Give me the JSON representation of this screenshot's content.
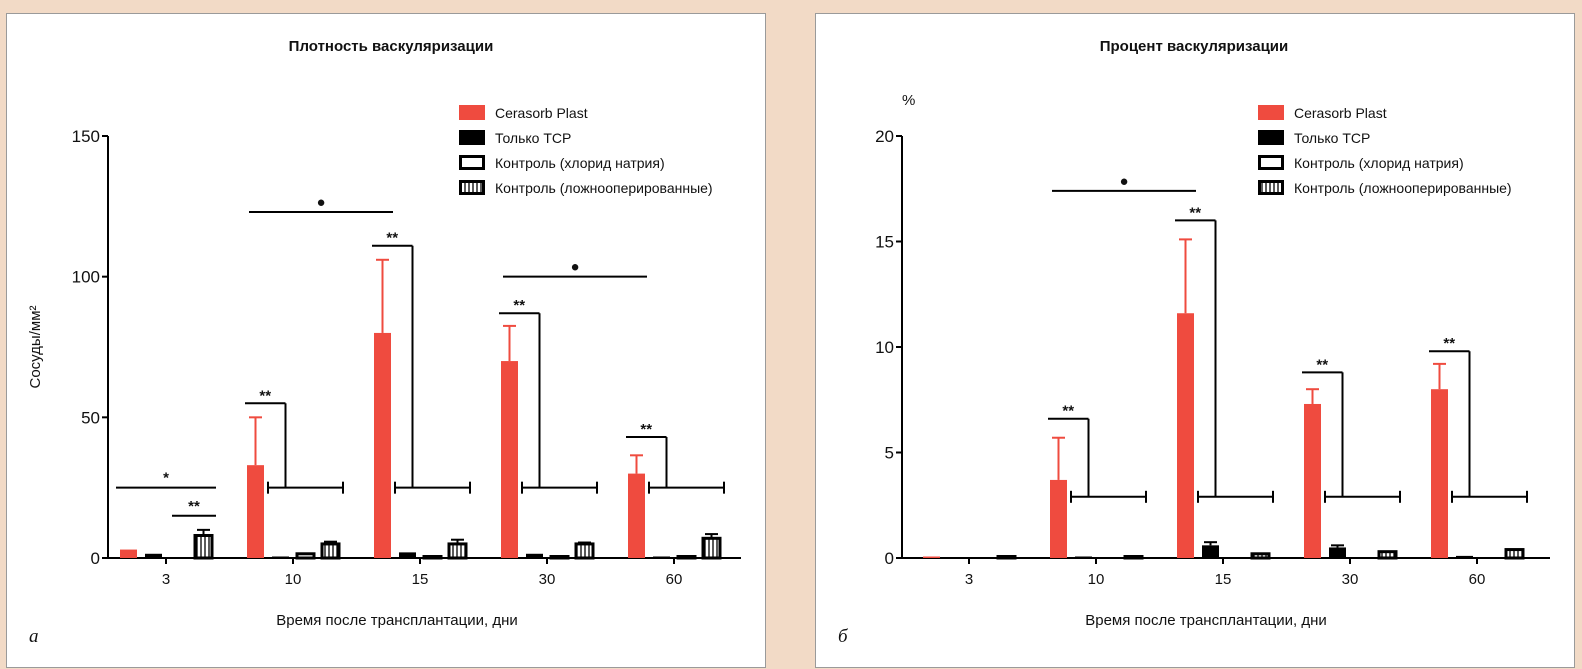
{
  "colors": {
    "cerasorb": "#ef4b3f",
    "tcp": "#000000",
    "outline": "#000000"
  },
  "chart_data": [
    {
      "type": "bar",
      "panel": "а",
      "title": "Плотность васкуляризации",
      "unit_label": "",
      "ylabel": "Сосуды/мм²",
      "xlabel": "Время после трансплантации, дни",
      "categories": [
        "3",
        "10",
        "15",
        "30",
        "60"
      ],
      "ylim": [
        0,
        150
      ],
      "yticks": [
        "0",
        "50",
        "100",
        "150"
      ],
      "legend_position": "top-right",
      "series": [
        {
          "name": "Cerasorb Plast",
          "style": "solid-red",
          "values": [
            3,
            33,
            80,
            70,
            30
          ],
          "errors": [
            0,
            17,
            26,
            12.5,
            6.5
          ]
        },
        {
          "name": "Только ТСР",
          "style": "solid-black",
          "values": [
            1.5,
            0.5,
            2,
            1.5,
            0.5
          ],
          "errors": [
            0,
            0,
            0,
            0,
            0
          ]
        },
        {
          "name": "Контроль (хлорид натрия)",
          "style": "outline",
          "values": [
            0,
            1.5,
            0.5,
            0.5,
            0.5
          ],
          "errors": [
            0,
            0,
            0,
            0,
            0
          ]
        },
        {
          "name": "Контроль (ложнооперированные)",
          "style": "hatched",
          "values": [
            8,
            5,
            5,
            5,
            7
          ],
          "errors": [
            2,
            0.8,
            1.5,
            0.5,
            1.5
          ]
        }
      ],
      "significance": [
        {
          "label": "*",
          "kind": "line",
          "from": [
            0,
            0
          ],
          "to": [
            0,
            3
          ],
          "y": 25
        },
        {
          "label": "**",
          "kind": "line",
          "from": [
            0,
            2
          ],
          "to": [
            0,
            3
          ],
          "y": 15
        },
        {
          "label": "●",
          "kind": "line",
          "from": [
            1,
            0
          ],
          "to": [
            2,
            0
          ],
          "y": 123
        },
        {
          "label": "●",
          "kind": "line",
          "from": [
            3,
            0
          ],
          "to": [
            4,
            0
          ],
          "y": 100
        },
        {
          "label": "**",
          "kind": "bracket",
          "group": 1,
          "top": 55,
          "base": 25
        },
        {
          "label": "**",
          "kind": "bracket",
          "group": 2,
          "top": 111,
          "base": 25
        },
        {
          "label": "**",
          "kind": "bracket",
          "group": 3,
          "top": 87,
          "base": 25
        },
        {
          "label": "**",
          "kind": "bracket",
          "group": 4,
          "top": 43,
          "base": 25
        }
      ]
    },
    {
      "type": "bar",
      "panel": "б",
      "title": "Процент васкуляризации",
      "unit_label": "%",
      "ylabel": "",
      "xlabel": "Время после трансплантации, дни",
      "categories": [
        "3",
        "10",
        "15",
        "30",
        "60"
      ],
      "ylim": [
        0,
        20
      ],
      "yticks": [
        "0",
        "5",
        "10",
        "15",
        "20"
      ],
      "legend_position": "top-right",
      "series": [
        {
          "name": "Cerasorb Plast",
          "style": "solid-red",
          "values": [
            0.05,
            3.7,
            11.6,
            7.3,
            8.0
          ],
          "errors": [
            0,
            2.0,
            3.5,
            0.7,
            1.2
          ]
        },
        {
          "name": "Только ТСР",
          "style": "solid-black",
          "values": [
            0,
            0.05,
            0.6,
            0.5,
            0.1
          ],
          "errors": [
            0,
            0,
            0.15,
            0.1,
            0
          ]
        },
        {
          "name": "Контроль (хлорид натрия)",
          "style": "outline",
          "values": [
            0,
            0,
            0,
            0,
            0
          ],
          "errors": [
            0,
            0,
            0,
            0,
            0
          ]
        },
        {
          "name": "Контроль (ложнооперированные)",
          "style": "hatched",
          "values": [
            0.05,
            0.05,
            0.2,
            0.3,
            0.4
          ],
          "errors": [
            0,
            0,
            0,
            0,
            0
          ]
        }
      ],
      "significance": [
        {
          "label": "●",
          "kind": "line",
          "from": [
            1,
            0
          ],
          "to": [
            2,
            0
          ],
          "y": 17.4
        },
        {
          "label": "**",
          "kind": "bracket",
          "group": 1,
          "top": 6.6,
          "base": 2.9
        },
        {
          "label": "**",
          "kind": "bracket",
          "group": 2,
          "top": 16.0,
          "base": 2.9
        },
        {
          "label": "**",
          "kind": "bracket",
          "group": 3,
          "top": 8.8,
          "base": 2.9
        },
        {
          "label": "**",
          "kind": "bracket",
          "group": 4,
          "top": 9.8,
          "base": 2.9
        }
      ]
    }
  ]
}
